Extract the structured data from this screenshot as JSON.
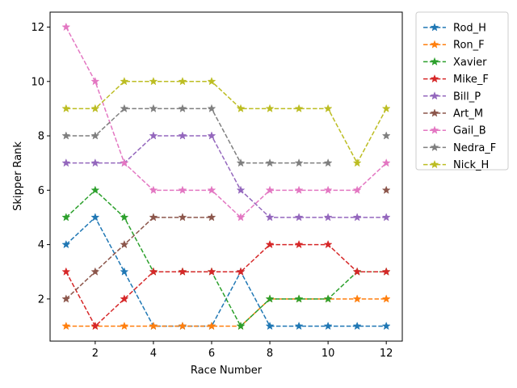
{
  "chart_data": {
    "type": "line",
    "title": "",
    "xlabel": "Race Number",
    "ylabel": "Skipper Rank",
    "x": [
      1,
      2,
      3,
      4,
      5,
      6,
      7,
      8,
      9,
      10,
      11,
      12
    ],
    "xticks": [
      2,
      4,
      6,
      8,
      10,
      12
    ],
    "yticks": [
      2,
      4,
      6,
      8,
      10,
      12
    ],
    "xlim": [
      0.45,
      12.55
    ],
    "ylim": [
      0.45,
      12.55
    ],
    "grid": false,
    "legend_position": "outside upper right",
    "line_style": "dashed",
    "marker": "star",
    "series": [
      {
        "name": "Rod_H",
        "color": "#1f77b4",
        "values": [
          4,
          5,
          3,
          1,
          1,
          1,
          3,
          1,
          1,
          1,
          1,
          1
        ]
      },
      {
        "name": "Ron_F",
        "color": "#ff7f0e",
        "values": [
          1,
          1,
          1,
          1,
          1,
          1,
          1,
          2,
          2,
          2,
          2,
          2
        ]
      },
      {
        "name": "Xavier",
        "color": "#2ca02c",
        "values": [
          5,
          6,
          5,
          3,
          3,
          3,
          1,
          2,
          2,
          2,
          3,
          3
        ]
      },
      {
        "name": "Mike_F",
        "color": "#d62728",
        "values": [
          3,
          1,
          2,
          3,
          3,
          3,
          3,
          4,
          4,
          4,
          3,
          3
        ]
      },
      {
        "name": "Bill_P",
        "color": "#9467bd",
        "values": [
          7,
          7,
          7,
          8,
          8,
          8,
          6,
          5,
          5,
          5,
          5,
          5
        ]
      },
      {
        "name": "Art_M",
        "color": "#8c564b",
        "values": [
          2,
          3,
          4,
          5,
          5,
          5,
          null,
          null,
          null,
          null,
          null,
          6
        ]
      },
      {
        "name": "Gail_B",
        "color": "#e377c2",
        "values": [
          12,
          10,
          7,
          6,
          6,
          6,
          5,
          6,
          6,
          6,
          6,
          7
        ]
      },
      {
        "name": "Nedra_F",
        "color": "#7f7f7f",
        "values": [
          8,
          8,
          9,
          9,
          9,
          9,
          7,
          7,
          7,
          7,
          null,
          8
        ]
      },
      {
        "name": "Nick_H",
        "color": "#bcbd22",
        "values": [
          9,
          9,
          10,
          10,
          10,
          10,
          9,
          9,
          9,
          9,
          7,
          9
        ]
      }
    ]
  }
}
